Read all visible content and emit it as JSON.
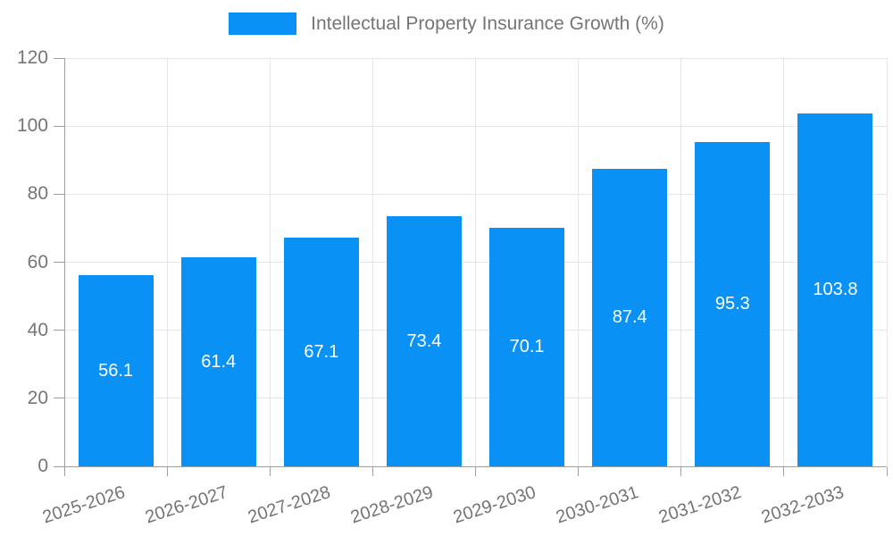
{
  "colors": {
    "bar": "#0991f6",
    "grid": "#e6e6e6",
    "axis": "#9e9e9e",
    "tick_text": "#757575",
    "bar_label_text": "#ffffff",
    "background": "#ffffff"
  },
  "legend": {
    "label": "Intellectual Property Insurance Growth (%)"
  },
  "chart_data": {
    "type": "bar",
    "title": "Intellectual Property Insurance Growth (%)",
    "categories": [
      "2025-2026",
      "2026-2027",
      "2027-2028",
      "2028-2029",
      "2029-2030",
      "2030-2031",
      "2031-2032",
      "2032-2033"
    ],
    "values": [
      56.1,
      61.4,
      67.1,
      73.4,
      70.1,
      87.4,
      95.3,
      103.8
    ],
    "value_labels": [
      "56.1",
      "61.4",
      "67.1",
      "73.4",
      "70.1",
      "87.4",
      "95.3",
      "103.8"
    ],
    "xlabel": "",
    "ylabel": "",
    "ylim": [
      0,
      120
    ],
    "ytick_step": 20,
    "ytick_labels": [
      "0",
      "20",
      "40",
      "60",
      "80",
      "100",
      "120"
    ],
    "grid": true,
    "legend_position": "top",
    "bar_label_position": "center"
  }
}
